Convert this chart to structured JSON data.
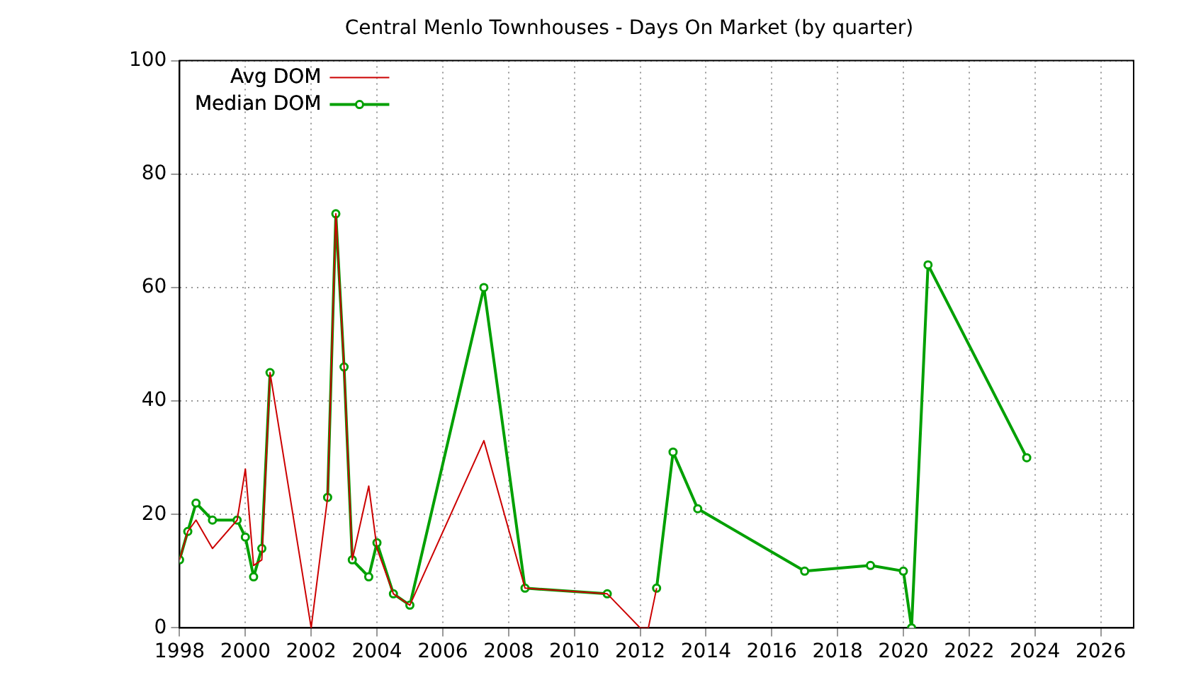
{
  "chart_data": {
    "type": "line",
    "title": "Central Menlo Townhouses - Days On Market (by quarter)",
    "x": [
      1998,
      1998.25,
      1998.5,
      1999,
      1999.75,
      2000,
      2000.25,
      2000.5,
      2000.75,
      2002,
      2002.5,
      2002.75,
      2003,
      2003.25,
      2003.75,
      2004,
      2004.5,
      2005,
      2007.25,
      2008.5,
      2011,
      2012,
      2012.25,
      2012.5,
      2013,
      2013.75,
      2017,
      2019,
      2020,
      2020.25,
      2020.75,
      2023.75
    ],
    "series": [
      {
        "name": "Avg DOM",
        "color": "#cc0000",
        "marker": "none",
        "values": [
          12,
          17,
          19,
          14,
          19,
          28,
          11,
          12,
          45,
          0,
          23,
          73,
          46,
          12,
          25,
          14,
          6,
          4,
          33,
          7,
          6,
          0,
          0,
          7,
          null,
          null,
          null,
          null,
          null,
          null,
          null,
          null
        ]
      },
      {
        "name": "Median DOM",
        "color": "#00a000",
        "marker": "circle",
        "values": [
          12,
          17,
          22,
          19,
          19,
          16,
          9,
          14,
          45,
          null,
          23,
          73,
          46,
          12,
          9,
          15,
          6,
          4,
          60,
          7,
          6,
          null,
          null,
          7,
          31,
          21,
          10,
          11,
          10,
          0,
          64,
          30
        ]
      }
    ],
    "xlim": [
      1998,
      2027
    ],
    "xticks": [
      1998,
      2000,
      2002,
      2004,
      2006,
      2008,
      2010,
      2012,
      2014,
      2016,
      2018,
      2020,
      2022,
      2024,
      2026
    ],
    "ylim": [
      0,
      100
    ],
    "yticks": [
      0,
      20,
      40,
      60,
      80,
      100
    ],
    "grid": true,
    "legend": "top left",
    "line_style": "solid"
  }
}
